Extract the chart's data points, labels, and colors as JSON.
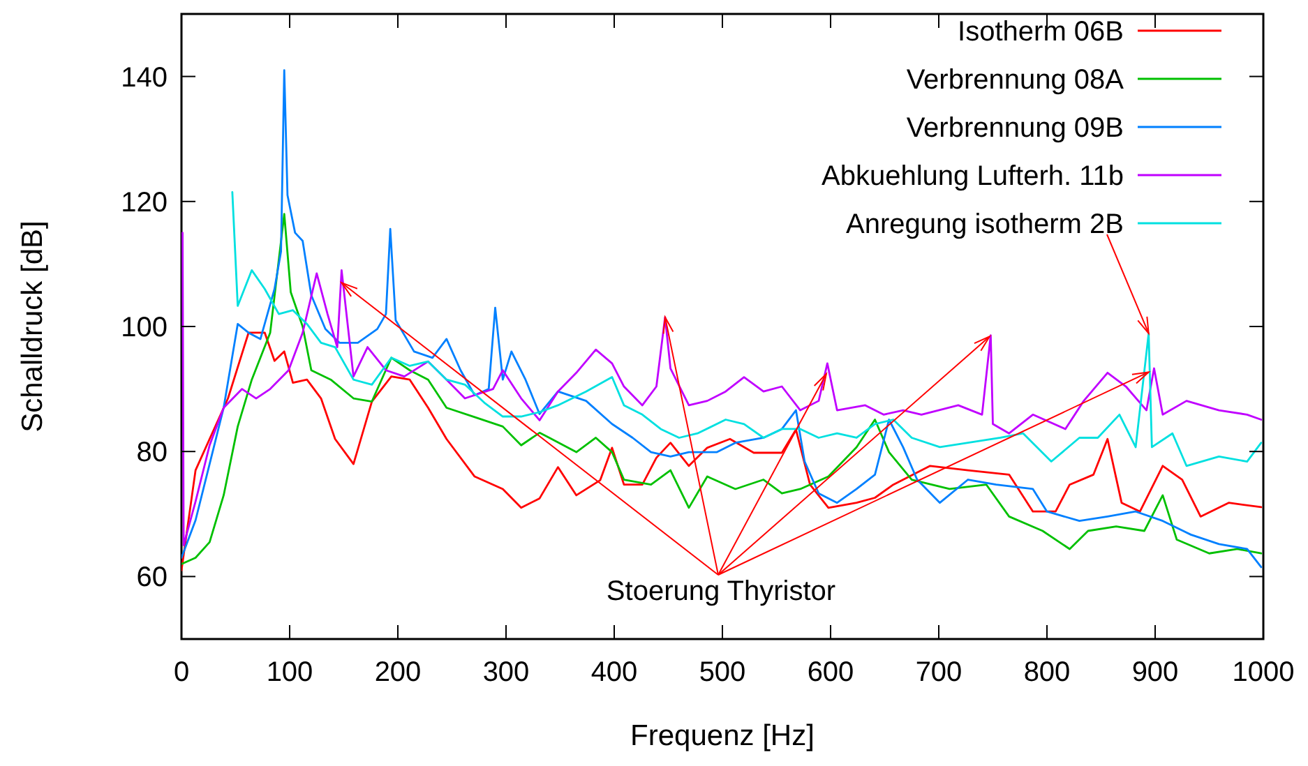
{
  "chart_data": {
    "type": "line",
    "xlabel": "Frequenz [Hz]",
    "ylabel": "Schalldruck [dB]",
    "xlim": [
      0,
      1000
    ],
    "ylim": [
      50,
      150
    ],
    "xticks": [
      0,
      100,
      200,
      300,
      400,
      500,
      600,
      700,
      800,
      900,
      1000
    ],
    "yticks": [
      60,
      80,
      100,
      120,
      140
    ],
    "grid": false,
    "legend": "top right",
    "marker": "none",
    "line_style": "solid",
    "annotations": [
      {
        "text": "Stoerung Thyristor",
        "x": 447,
        "y": 101.5
      }
    ],
    "series": [
      {
        "name": "Isotherm 06B",
        "color": "#ff0000",
        "x": [
          0,
          13,
          26,
          43,
          62,
          77,
          86,
          95,
          103,
          116,
          129,
          142,
          159,
          176,
          194,
          211,
          228,
          245,
          271,
          297,
          314,
          331,
          348,
          365,
          387,
          398,
          409,
          426,
          439,
          452,
          469,
          486,
          507,
          529,
          555,
          568,
          581,
          598,
          624,
          641,
          658,
          692,
          727,
          765,
          787,
          808,
          821,
          843,
          856,
          869,
          886,
          907,
          925,
          942,
          968,
          998
        ],
        "values": [
          61,
          77,
          82,
          88.5,
          99,
          99,
          94.5,
          96,
          91,
          91.5,
          88.5,
          82,
          78,
          88,
          92,
          91.5,
          87,
          82,
          76,
          74,
          71,
          72.5,
          77.5,
          73,
          75.4,
          80.6,
          74.7,
          74.7,
          79,
          81.4,
          77.7,
          80.6,
          82,
          79.8,
          79.8,
          83.5,
          74.7,
          71,
          71.8,
          72.6,
          74.7,
          77.7,
          77,
          76.3,
          70.4,
          70.4,
          74.7,
          76.3,
          82,
          71.8,
          70.4,
          77.7,
          75.5,
          69.6,
          71.8,
          71.1
        ]
      },
      {
        "name": "Verbrennung 08A",
        "color": "#00c000",
        "x": [
          0,
          13,
          26,
          39,
          52,
          65,
          82,
          95,
          101,
          112,
          120,
          138,
          159,
          176,
          194,
          211,
          228,
          245,
          271,
          297,
          314,
          331,
          340,
          365,
          383,
          398,
          409,
          434,
          452,
          469,
          486,
          512,
          538,
          555,
          572,
          598,
          624,
          641,
          654,
          675,
          710,
          744,
          765,
          796,
          821,
          838,
          864,
          890,
          907,
          920,
          950,
          976,
          998
        ],
        "values": [
          62,
          63,
          65.5,
          73,
          84,
          91.5,
          99,
          118,
          105.5,
          100,
          93,
          91.5,
          88.5,
          88,
          95,
          93,
          91.5,
          87,
          85.5,
          84,
          81,
          83,
          82.2,
          79.9,
          82.2,
          79.9,
          75.5,
          74.7,
          77,
          71,
          76,
          74,
          75.5,
          73.3,
          74,
          76,
          80.7,
          85.1,
          79.9,
          75.5,
          74,
          74.7,
          69.6,
          67.3,
          64.4,
          67.3,
          68,
          67.3,
          73,
          65.9,
          63.7,
          64.4,
          63.7
        ]
      },
      {
        "name": "Verbrennung 09B",
        "color": "#0080ff",
        "x": [
          0,
          13,
          26,
          39,
          52,
          62,
          73,
          86,
          92,
          95,
          98,
          105,
          112,
          120,
          133,
          146,
          163,
          181,
          189,
          193,
          198,
          215,
          232,
          245,
          258,
          271,
          284,
          290,
          297,
          305,
          318,
          331,
          348,
          374,
          398,
          417,
          434,
          452,
          469,
          495,
          512,
          538,
          555,
          568,
          576,
          589,
          606,
          624,
          641,
          654,
          667,
          680,
          701,
          727,
          753,
          787,
          800,
          830,
          856,
          882,
          907,
          933,
          959,
          985,
          998
        ],
        "values": [
          63,
          69,
          78,
          87,
          100.4,
          99,
          98,
          106,
          112,
          141,
          121,
          115,
          113.7,
          105,
          99.6,
          97.4,
          97.4,
          99.6,
          102,
          115.6,
          101,
          96,
          95,
          98,
          93,
          89,
          90,
          103,
          91.5,
          96,
          91.5,
          86,
          89.6,
          88.1,
          84.4,
          82.2,
          79.9,
          79.2,
          79.9,
          79.9,
          81.4,
          82.2,
          83.6,
          86.6,
          78.4,
          73.3,
          71.8,
          74,
          76.3,
          85.1,
          80.7,
          75.5,
          71.8,
          75.5,
          74.7,
          74,
          70.4,
          68.9,
          69.6,
          70.4,
          68.9,
          66.7,
          65.2,
          64.4,
          61.5
        ]
      },
      {
        "name": "Abkuehlung Lufterh. 11b",
        "color": "#c000ff",
        "x": [
          1,
          2,
          13,
          26,
          39,
          56,
          69,
          82,
          99,
          112,
          125,
          135,
          144,
          148,
          159,
          172,
          189,
          206,
          228,
          245,
          262,
          288,
          297,
          314,
          331,
          348,
          365,
          383,
          398,
          409,
          426,
          439,
          447,
          452,
          469,
          486,
          503,
          520,
          538,
          555,
          572,
          589,
          597,
          606,
          632,
          649,
          667,
          684,
          718,
          740,
          748,
          750,
          765,
          787,
          817,
          834,
          856,
          873,
          892,
          899,
          907,
          929,
          959,
          985,
          998
        ],
        "values": [
          115,
          65,
          72,
          81,
          87,
          90,
          88.5,
          90,
          93,
          99,
          108.5,
          102,
          96.7,
          109,
          92,
          96.7,
          93,
          92,
          94.4,
          91.5,
          88.5,
          90,
          93,
          88.5,
          85,
          89.6,
          92.6,
          96.3,
          94.1,
          90.4,
          87.4,
          90.4,
          101.5,
          93.3,
          87.4,
          88.1,
          89.6,
          91.9,
          89.6,
          90.4,
          86.6,
          88.1,
          94.1,
          86.6,
          87.4,
          85.9,
          86.6,
          85.9,
          87.4,
          85.9,
          98.6,
          84.4,
          82.9,
          85.9,
          83.6,
          88.1,
          92.6,
          90.4,
          86.6,
          93.3,
          85.9,
          88.1,
          86.6,
          85.9,
          85.1
        ]
      },
      {
        "name": "Anregung isotherm 2B",
        "color": "#00e0e0",
        "x": [
          47,
          52,
          65,
          77,
          90,
          103,
          116,
          129,
          142,
          159,
          176,
          194,
          211,
          228,
          245,
          262,
          280,
          297,
          314,
          331,
          348,
          374,
          398,
          409,
          426,
          443,
          460,
          477,
          503,
          520,
          538,
          555,
          572,
          589,
          606,
          624,
          641,
          658,
          675,
          701,
          727,
          757,
          778,
          804,
          830,
          847,
          867,
          882,
          894,
          897,
          916,
          929,
          959,
          985,
          998
        ],
        "values": [
          121.5,
          103.3,
          109,
          106,
          102,
          102.6,
          100.4,
          97.4,
          96.7,
          91.5,
          90.7,
          95,
          93.7,
          94.4,
          91.5,
          90.7,
          87.8,
          85.6,
          85.6,
          86.3,
          87.4,
          89.6,
          91.9,
          87.4,
          85.9,
          83.6,
          82.2,
          82.9,
          85.1,
          84.4,
          82.2,
          83.6,
          83.6,
          82.2,
          82.9,
          82.2,
          84.4,
          85.1,
          82.2,
          80.7,
          81.4,
          82.2,
          82.9,
          78.4,
          82.2,
          82.2,
          85.9,
          80.7,
          98.9,
          80.7,
          82.9,
          77.7,
          79.2,
          78.4,
          81.4
        ]
      }
    ]
  }
}
